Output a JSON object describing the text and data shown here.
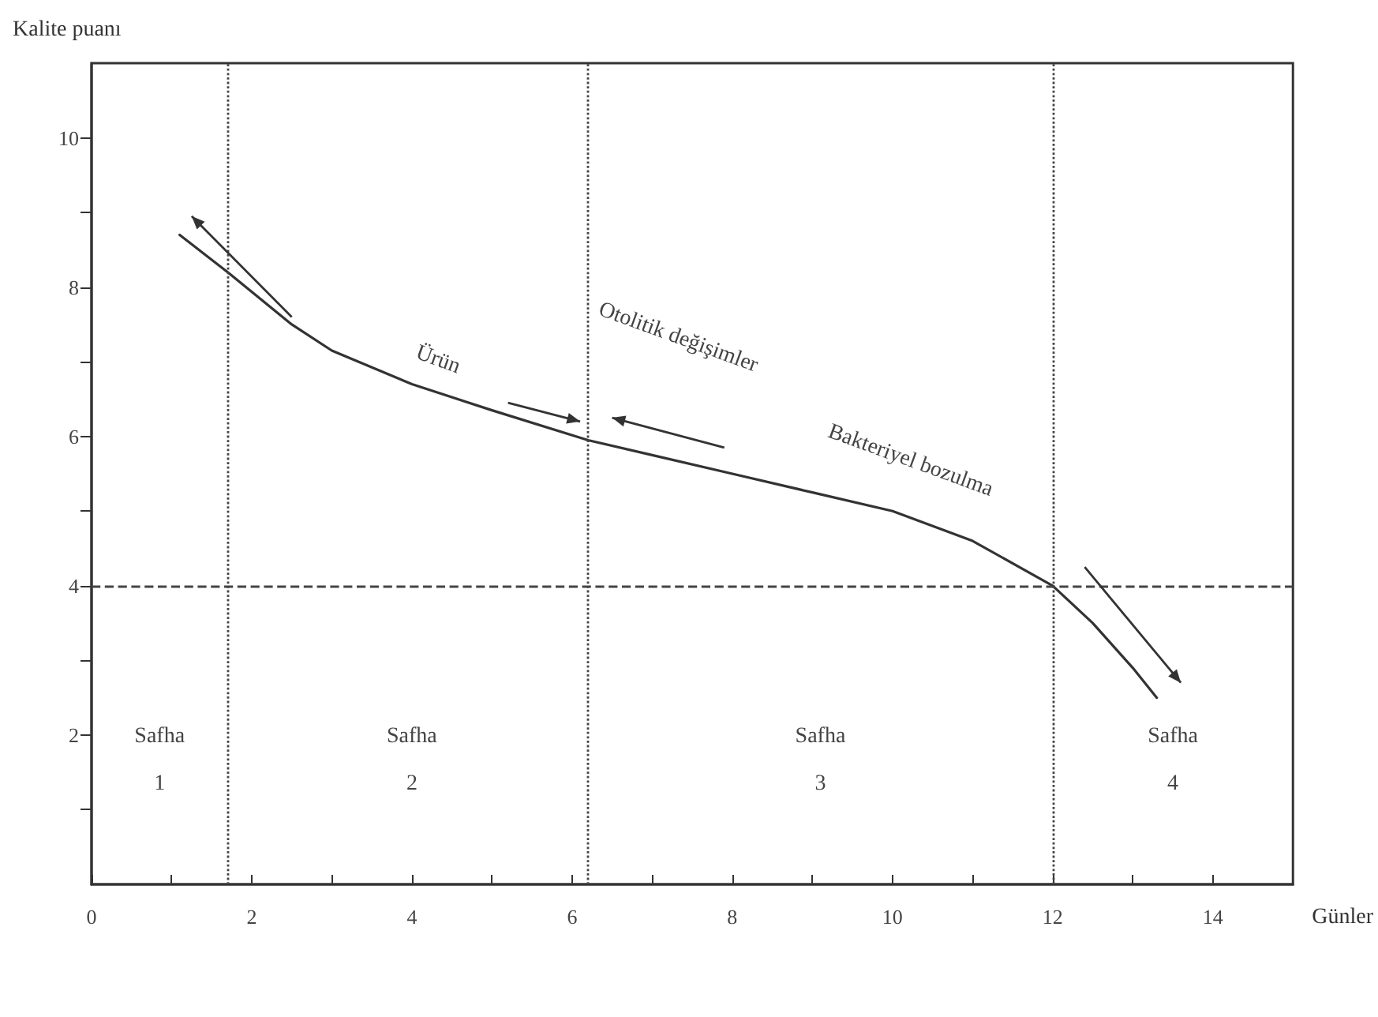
{
  "chart_data": {
    "type": "line",
    "xlabel": "Günler",
    "ylabel": "Kalite puanı",
    "x": [
      1.1,
      1.7,
      2.5,
      3,
      4,
      5,
      6.2,
      7,
      8,
      9,
      10,
      11,
      12,
      12.5,
      13,
      13.3
    ],
    "series": [
      {
        "color": "#333333",
        "values": [
          8.7,
          8.2,
          7.5,
          7.15,
          6.7,
          6.35,
          5.95,
          5.75,
          5.5,
          5.25,
          5.0,
          4.6,
          4.0,
          3.5,
          2.9,
          2.5
        ]
      }
    ],
    "xlim": [
      0,
      15
    ],
    "xticks": [
      0,
      {
        "value": 1,
        "label": null
      },
      2,
      {
        "value": 3,
        "label": null
      },
      4,
      {
        "value": 5,
        "label": null
      },
      6,
      {
        "value": 7,
        "label": null
      },
      8,
      {
        "value": 9,
        "label": null
      },
      10,
      {
        "value": 11,
        "label": null
      },
      12,
      {
        "value": 13,
        "label": null
      },
      14
    ],
    "ylim": [
      0,
      11
    ],
    "yticks": [
      {
        "value": 1,
        "label": null
      },
      2,
      {
        "value": 3,
        "label": null
      },
      4,
      {
        "value": 5,
        "label": null
      },
      6,
      {
        "value": 7,
        "label": null
      },
      8,
      {
        "value": 9,
        "label": null
      },
      10
    ],
    "ref_lines": [
      {
        "axis": "y",
        "value": 4,
        "line_style": "dashed"
      },
      {
        "axis": "x",
        "value": 1.7,
        "line_style": "dotted"
      },
      {
        "axis": "x",
        "value": 6.2,
        "line_style": "dotted"
      },
      {
        "axis": "x",
        "value": 12,
        "line_style": "dotted"
      }
    ],
    "annotations": [
      "Safha\n1",
      "Safha\n2",
      "Safha\n3",
      "Safha\n4",
      "Ürün",
      "Otolitik değişimler",
      "Bakteriyel bozulma"
    ],
    "marker": "none",
    "line_style": "solid",
    "grid": false
  }
}
